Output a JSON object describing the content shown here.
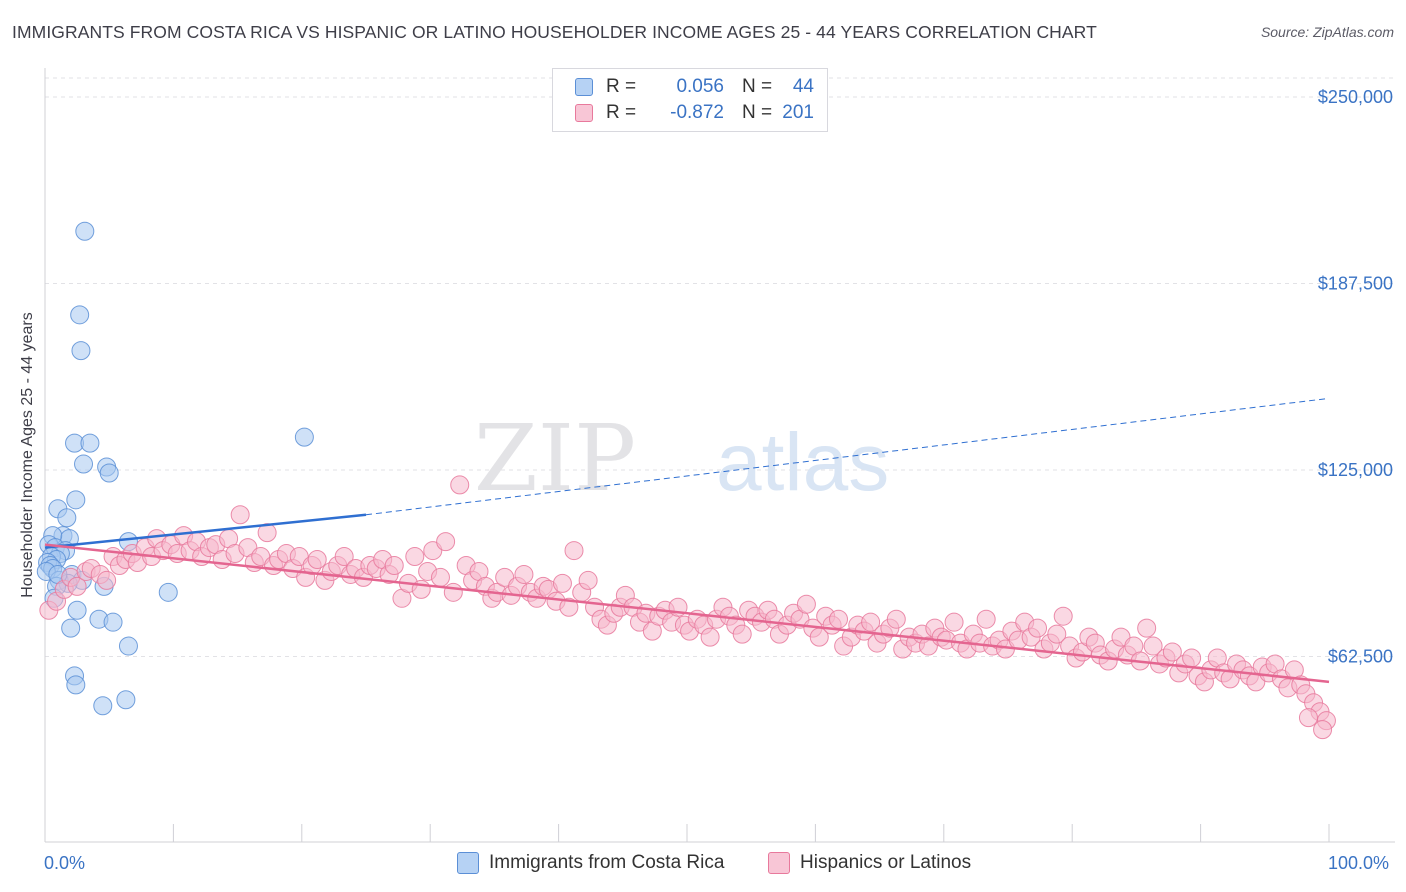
{
  "title": "IMMIGRANTS FROM COSTA RICA VS HISPANIC OR LATINO HOUSEHOLDER INCOME AGES 25 - 44 YEARS CORRELATION CHART",
  "source": "Source: ZipAtlas.com",
  "watermark": {
    "zip": "ZIP",
    "atlas": "atlas"
  },
  "legend": {
    "series1": {
      "r_label": "R =",
      "r_value": "0.056",
      "n_label": "N =",
      "n_value": "44"
    },
    "series2": {
      "r_label": "R =",
      "r_value": "-0.872",
      "n_label": "N =",
      "n_value": "201"
    }
  },
  "bottom_legend": {
    "series1": "Immigrants from Costa Rica",
    "series2": "Hispanics or Latinos"
  },
  "x_axis": {
    "min_label": "0.0%",
    "max_label": "100.0%"
  },
  "colors": {
    "blue_fill": "#a8c8f0",
    "blue_stroke": "#5b8fd6",
    "blue_line": "#2f6fd1",
    "pink_fill": "#f5b8cc",
    "pink_stroke": "#e8799c",
    "pink_line": "#e46590",
    "axis_text": "#3a73c4"
  },
  "chart_data": {
    "type": "scatter",
    "title": "IMMIGRANTS FROM COSTA RICA VS HISPANIC OR LATINO HOUSEHOLDER INCOME AGES 25 - 44 YEARS CORRELATION CHART",
    "xlabel": "",
    "ylabel": "Householder Income Ages 25 - 44 years",
    "xlim": [
      0,
      100
    ],
    "ylim": [
      0,
      265000
    ],
    "y_ticks": [
      {
        "value": 62500,
        "label": "$62,500"
      },
      {
        "value": 125000,
        "label": "$125,000"
      },
      {
        "value": 187500,
        "label": "$187,500"
      },
      {
        "value": 250000,
        "label": "$250,000"
      }
    ],
    "x_tick_labels": [
      "0.0%",
      "100.0%"
    ],
    "grid": true,
    "series": [
      {
        "name": "Immigrants from Costa Rica",
        "R": 0.056,
        "N": 44,
        "trend": {
          "x0": 0,
          "y0": 99000,
          "x1_solid": 25,
          "y1_solid": 110000,
          "x1_dashed": 100,
          "y1_dashed": 149000
        },
        "points": [
          [
            3.1,
            205000
          ],
          [
            2.7,
            177000
          ],
          [
            2.8,
            165000
          ],
          [
            20.2,
            136000
          ],
          [
            2.3,
            134000
          ],
          [
            3.5,
            134000
          ],
          [
            3.0,
            127000
          ],
          [
            4.8,
            126000
          ],
          [
            5.0,
            124000
          ],
          [
            2.4,
            115000
          ],
          [
            1.0,
            112000
          ],
          [
            1.7,
            109000
          ],
          [
            1.4,
            103000
          ],
          [
            1.9,
            102000
          ],
          [
            6.5,
            101000
          ],
          [
            0.6,
            103000
          ],
          [
            0.3,
            100000
          ],
          [
            0.8,
            99000
          ],
          [
            1.6,
            98000
          ],
          [
            1.2,
            97000
          ],
          [
            0.5,
            96000
          ],
          [
            0.9,
            95000
          ],
          [
            0.2,
            94000
          ],
          [
            0.4,
            93000
          ],
          [
            0.6,
            92000
          ],
          [
            0.1,
            91000
          ],
          [
            2.1,
            90000
          ],
          [
            2.9,
            88000
          ],
          [
            1.1,
            88000
          ],
          [
            1.8,
            87000
          ],
          [
            4.6,
            86000
          ],
          [
            0.9,
            86000
          ],
          [
            9.6,
            84000
          ],
          [
            0.7,
            82000
          ],
          [
            2.5,
            78000
          ],
          [
            4.2,
            75000
          ],
          [
            5.3,
            74000
          ],
          [
            2.0,
            72000
          ],
          [
            6.5,
            66000
          ],
          [
            2.3,
            56000
          ],
          [
            2.4,
            53000
          ],
          [
            6.3,
            48000
          ],
          [
            4.5,
            46000
          ],
          [
            1.0,
            90000
          ]
        ]
      },
      {
        "name": "Hispanics or Latinos",
        "R": -0.872,
        "N": 201,
        "trend": {
          "x0": 0,
          "y0": 100000,
          "x1": 100,
          "y1": 54000
        },
        "points": [
          [
            0.3,
            78000
          ],
          [
            0.9,
            81000
          ],
          [
            1.5,
            85000
          ],
          [
            2.0,
            89000
          ],
          [
            2.5,
            86000
          ],
          [
            3.2,
            91000
          ],
          [
            3.6,
            92000
          ],
          [
            4.3,
            90000
          ],
          [
            4.8,
            88000
          ],
          [
            5.3,
            96000
          ],
          [
            5.8,
            93000
          ],
          [
            6.3,
            95000
          ],
          [
            6.8,
            97000
          ],
          [
            7.2,
            94000
          ],
          [
            7.8,
            99000
          ],
          [
            8.3,
            96000
          ],
          [
            8.7,
            102000
          ],
          [
            9.2,
            98000
          ],
          [
            9.8,
            100000
          ],
          [
            10.3,
            97000
          ],
          [
            10.8,
            103000
          ],
          [
            11.3,
            98000
          ],
          [
            11.8,
            101000
          ],
          [
            12.2,
            96000
          ],
          [
            12.8,
            99000
          ],
          [
            13.3,
            100000
          ],
          [
            13.8,
            95000
          ],
          [
            14.3,
            102000
          ],
          [
            14.8,
            97000
          ],
          [
            15.2,
            110000
          ],
          [
            15.8,
            99000
          ],
          [
            16.3,
            94000
          ],
          [
            16.8,
            96000
          ],
          [
            17.3,
            104000
          ],
          [
            17.8,
            93000
          ],
          [
            18.2,
            95000
          ],
          [
            18.8,
            97000
          ],
          [
            19.3,
            92000
          ],
          [
            19.8,
            96000
          ],
          [
            20.3,
            89000
          ],
          [
            20.8,
            93000
          ],
          [
            21.2,
            95000
          ],
          [
            21.8,
            88000
          ],
          [
            22.3,
            91000
          ],
          [
            22.8,
            93000
          ],
          [
            23.3,
            96000
          ],
          [
            23.8,
            90000
          ],
          [
            24.2,
            92000
          ],
          [
            24.8,
            89000
          ],
          [
            25.3,
            93000
          ],
          [
            25.8,
            92000
          ],
          [
            26.3,
            95000
          ],
          [
            26.8,
            90000
          ],
          [
            27.2,
            93000
          ],
          [
            27.8,
            82000
          ],
          [
            28.3,
            87000
          ],
          [
            28.8,
            96000
          ],
          [
            29.3,
            85000
          ],
          [
            29.8,
            91000
          ],
          [
            30.2,
            98000
          ],
          [
            30.8,
            89000
          ],
          [
            31.2,
            101000
          ],
          [
            31.8,
            84000
          ],
          [
            32.3,
            120000
          ],
          [
            32.8,
            93000
          ],
          [
            33.3,
            88000
          ],
          [
            33.8,
            91000
          ],
          [
            34.3,
            86000
          ],
          [
            34.8,
            82000
          ],
          [
            35.2,
            84000
          ],
          [
            35.8,
            89000
          ],
          [
            36.3,
            83000
          ],
          [
            36.8,
            86000
          ],
          [
            37.3,
            90000
          ],
          [
            37.8,
            84000
          ],
          [
            38.3,
            82000
          ],
          [
            38.8,
            86000
          ],
          [
            39.2,
            85000
          ],
          [
            39.8,
            81000
          ],
          [
            40.3,
            87000
          ],
          [
            40.8,
            79000
          ],
          [
            41.2,
            98000
          ],
          [
            41.8,
            84000
          ],
          [
            42.3,
            88000
          ],
          [
            42.8,
            79000
          ],
          [
            43.3,
            75000
          ],
          [
            43.8,
            73000
          ],
          [
            44.3,
            77000
          ],
          [
            44.8,
            79000
          ],
          [
            45.2,
            83000
          ],
          [
            45.8,
            79000
          ],
          [
            46.3,
            74000
          ],
          [
            46.8,
            77000
          ],
          [
            47.3,
            71000
          ],
          [
            47.8,
            76000
          ],
          [
            48.3,
            78000
          ],
          [
            48.8,
            74000
          ],
          [
            49.3,
            79000
          ],
          [
            49.8,
            73000
          ],
          [
            50.2,
            71000
          ],
          [
            50.8,
            75000
          ],
          [
            51.3,
            73000
          ],
          [
            51.8,
            69000
          ],
          [
            52.3,
            75000
          ],
          [
            52.8,
            79000
          ],
          [
            53.3,
            76000
          ],
          [
            53.8,
            73000
          ],
          [
            54.3,
            70000
          ],
          [
            54.8,
            78000
          ],
          [
            55.3,
            76000
          ],
          [
            55.8,
            74000
          ],
          [
            56.3,
            78000
          ],
          [
            56.8,
            75000
          ],
          [
            57.2,
            70000
          ],
          [
            57.8,
            73000
          ],
          [
            58.3,
            77000
          ],
          [
            58.8,
            75000
          ],
          [
            59.3,
            80000
          ],
          [
            59.8,
            72000
          ],
          [
            60.3,
            69000
          ],
          [
            60.8,
            76000
          ],
          [
            61.3,
            73000
          ],
          [
            61.8,
            75000
          ],
          [
            62.2,
            66000
          ],
          [
            62.8,
            69000
          ],
          [
            63.3,
            73000
          ],
          [
            63.8,
            71000
          ],
          [
            64.3,
            74000
          ],
          [
            64.8,
            67000
          ],
          [
            65.3,
            70000
          ],
          [
            65.8,
            72000
          ],
          [
            66.3,
            75000
          ],
          [
            66.8,
            65000
          ],
          [
            67.3,
            69000
          ],
          [
            67.8,
            67000
          ],
          [
            68.3,
            70000
          ],
          [
            68.8,
            66000
          ],
          [
            69.3,
            72000
          ],
          [
            69.8,
            69000
          ],
          [
            70.2,
            68000
          ],
          [
            70.8,
            74000
          ],
          [
            71.3,
            67000
          ],
          [
            71.8,
            65000
          ],
          [
            72.3,
            70000
          ],
          [
            72.8,
            67000
          ],
          [
            73.3,
            75000
          ],
          [
            73.8,
            66000
          ],
          [
            74.3,
            68000
          ],
          [
            74.8,
            65000
          ],
          [
            75.3,
            71000
          ],
          [
            75.8,
            68000
          ],
          [
            76.3,
            74000
          ],
          [
            76.8,
            69000
          ],
          [
            77.3,
            72000
          ],
          [
            77.8,
            65000
          ],
          [
            78.3,
            67000
          ],
          [
            78.8,
            70000
          ],
          [
            79.3,
            76000
          ],
          [
            79.8,
            66000
          ],
          [
            80.3,
            62000
          ],
          [
            80.8,
            64000
          ],
          [
            81.3,
            69000
          ],
          [
            81.8,
            67000
          ],
          [
            82.2,
            63000
          ],
          [
            82.8,
            61000
          ],
          [
            83.3,
            65000
          ],
          [
            83.8,
            69000
          ],
          [
            84.3,
            63000
          ],
          [
            84.8,
            66000
          ],
          [
            85.3,
            61000
          ],
          [
            85.8,
            72000
          ],
          [
            86.3,
            66000
          ],
          [
            86.8,
            60000
          ],
          [
            87.3,
            62000
          ],
          [
            87.8,
            64000
          ],
          [
            88.3,
            57000
          ],
          [
            88.8,
            60000
          ],
          [
            89.3,
            62000
          ],
          [
            89.8,
            56000
          ],
          [
            90.3,
            54000
          ],
          [
            90.8,
            58000
          ],
          [
            91.3,
            62000
          ],
          [
            91.8,
            57000
          ],
          [
            92.3,
            55000
          ],
          [
            92.8,
            60000
          ],
          [
            93.3,
            58000
          ],
          [
            93.8,
            56000
          ],
          [
            94.3,
            54000
          ],
          [
            94.8,
            59000
          ],
          [
            95.3,
            57000
          ],
          [
            95.8,
            60000
          ],
          [
            96.3,
            55000
          ],
          [
            96.8,
            52000
          ],
          [
            97.3,
            58000
          ],
          [
            97.8,
            53000
          ],
          [
            98.2,
            50000
          ],
          [
            98.8,
            47000
          ],
          [
            99.3,
            44000
          ],
          [
            99.8,
            41000
          ],
          [
            99.5,
            38000
          ],
          [
            98.4,
            42000
          ]
        ]
      }
    ]
  }
}
